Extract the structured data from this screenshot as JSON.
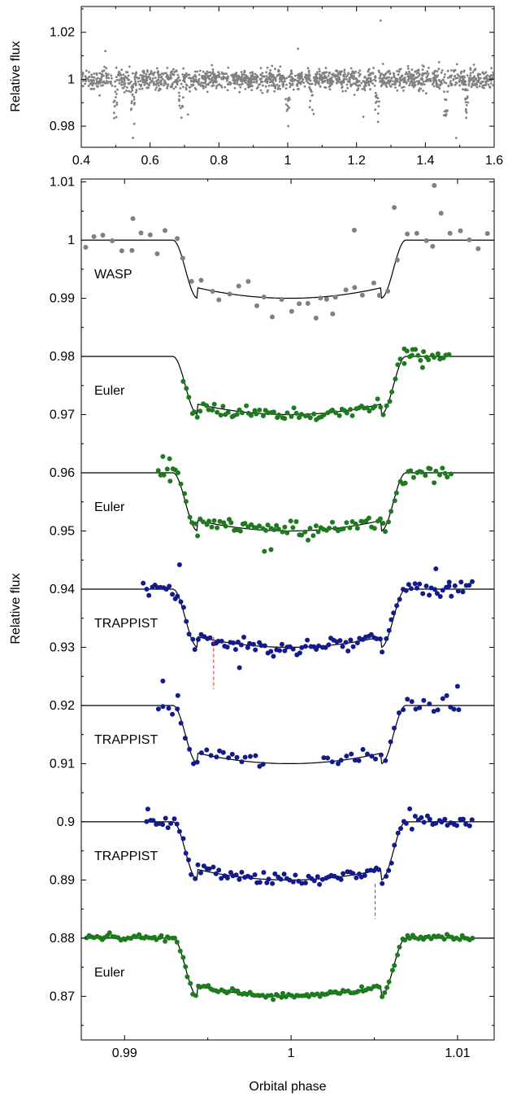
{
  "chart_data": [
    {
      "id": "top",
      "type": "scatter",
      "xlabel": "",
      "ylabel": "Relative flux",
      "xlim": [
        0.4,
        1.6
      ],
      "ylim": [
        0.971,
        1.031
      ],
      "xticks": [
        {
          "v": 0.4,
          "label": "0.4"
        },
        {
          "v": 0.6,
          "label": "0.6"
        },
        {
          "v": 0.8,
          "label": "0.8"
        },
        {
          "v": 1.0,
          "label": "1"
        },
        {
          "v": 1.2,
          "label": "1.2"
        },
        {
          "v": 1.4,
          "label": "1.4"
        },
        {
          "v": 1.6,
          "label": "1.6"
        }
      ],
      "yticks": [
        {
          "v": 0.98,
          "label": "0.98"
        },
        {
          "v": 1.0,
          "label": "1"
        },
        {
          "v": 1.02,
          "label": "1.02"
        }
      ],
      "series": [
        {
          "color": "#808080",
          "baseline": 1.0,
          "noise": 0.0022,
          "n_points": 1600,
          "transit_phases": [
            0.5,
            0.55,
            0.69,
            1.0,
            1.07,
            1.26,
            1.46,
            1.52
          ],
          "outliers": [
            [
              1.27,
              1.025
            ],
            [
              1.03,
              1.013
            ],
            [
              0.47,
              1.012
            ],
            [
              0.55,
              0.975
            ],
            [
              1.49,
              0.975
            ],
            [
              1.22,
              0.984
            ],
            [
              0.71,
              0.985
            ]
          ]
        }
      ]
    },
    {
      "id": "bottom",
      "type": "scatter",
      "xlabel": "Orbital phase",
      "ylabel": "Relative flux",
      "xlim": [
        0.9874,
        1.0122
      ],
      "ylim": [
        0.8625,
        1.0105
      ],
      "xticks": [
        {
          "v": 0.99,
          "label": "0.99"
        },
        {
          "v": 1.0,
          "label": "1"
        },
        {
          "v": 1.01,
          "label": "1.01"
        }
      ],
      "yticks": [
        {
          "v": 0.87,
          "label": "0.87"
        },
        {
          "v": 0.88,
          "label": "0.88"
        },
        {
          "v": 0.89,
          "label": "0.89"
        },
        {
          "v": 0.9,
          "label": "0.9"
        },
        {
          "v": 0.91,
          "label": "0.91"
        },
        {
          "v": 0.92,
          "label": "0.92"
        },
        {
          "v": 0.93,
          "label": "0.93"
        },
        {
          "v": 0.94,
          "label": "0.94"
        },
        {
          "v": 0.95,
          "label": "0.95"
        },
        {
          "v": 0.96,
          "label": "0.96"
        },
        {
          "v": 0.97,
          "label": "0.97"
        },
        {
          "v": 0.98,
          "label": "0.98"
        },
        {
          "v": 0.99,
          "label": "0.99"
        },
        {
          "v": 1.0,
          "label": "1"
        },
        {
          "v": 1.01,
          "label": "1.01"
        }
      ],
      "transit_model": {
        "t1": 0.9929,
        "t2": 0.9944,
        "t3": 1.0054,
        "t4": 1.0069,
        "depth": 0.01
      },
      "series": [
        {
          "name": "WASP",
          "baseline": 1.0,
          "color": "#808080",
          "x_start": 0.9876,
          "x_end": 1.0122,
          "n_points": 46,
          "noise": 0.0013,
          "seed": 11,
          "outliers": [
            [
              0.9905,
              1.0037
            ],
            [
              1.0038,
              1.0017
            ],
            [
              1.0062,
              1.0056
            ],
            [
              1.0086,
              1.0094
            ],
            [
              1.0025,
              0.9873
            ],
            [
              1.0015,
              0.9866
            ]
          ]
        },
        {
          "name": "Euler",
          "baseline": 0.98,
          "color": "#1e7a1e",
          "x_start": 0.9935,
          "x_end": 1.0096,
          "n_points": 95,
          "noise": 0.0005,
          "seed": 23,
          "outliers": [
            [
              1.0068,
              0.9813
            ],
            [
              1.0073,
              0.9812
            ],
            [
              1.0079,
              0.9781
            ]
          ]
        },
        {
          "name": "Euler",
          "baseline": 0.96,
          "color": "#1e7a1e",
          "x_start": 0.992,
          "x_end": 1.0097,
          "n_points": 105,
          "noise": 0.0007,
          "seed": 37,
          "outliers": [
            [
              0.9923,
              0.9628
            ],
            [
              0.9927,
              0.9624
            ],
            [
              0.9984,
              0.9465
            ],
            [
              0.9988,
              0.9468
            ]
          ]
        },
        {
          "name": "TRAPPIST",
          "baseline": 0.94,
          "color": "#131b8c",
          "x_start": 0.9911,
          "x_end": 1.011,
          "n_points": 115,
          "noise": 0.0006,
          "seed": 53,
          "outliers": [
            [
              0.9933,
              0.9442
            ],
            [
              0.9969,
              0.9265
            ],
            [
              1.0087,
              0.9435
            ],
            [
              1.0095,
              0.9412
            ]
          ],
          "marker": {
            "x": 0.99535,
            "y1": 0.9318,
            "y2": 0.9228
          }
        },
        {
          "name": "TRAPPIST",
          "baseline": 0.92,
          "color": "#131b8c",
          "x_start": 0.992,
          "x_end": 1.0103,
          "n_points": 70,
          "noise": 0.0008,
          "seed": 71,
          "gap": [
            0.9984,
            1.0019
          ],
          "outliers": [
            [
              0.9923,
              0.9242
            ],
            [
              0.9932,
              0.9217
            ],
            [
              1.01,
              0.9233
            ]
          ]
        },
        {
          "name": "TRAPPIST",
          "baseline": 0.9,
          "color": "#131b8c",
          "x_start": 0.9913,
          "x_end": 1.011,
          "n_points": 110,
          "noise": 0.0006,
          "seed": 89,
          "outliers": [
            [
              0.9914,
              0.9022
            ]
          ],
          "marker": {
            "x": 1.00505,
            "y1": 0.8893,
            "y2": 0.8833
          }
        },
        {
          "name": "Euler",
          "baseline": 0.88,
          "color": "#1e7a1e",
          "x_start": 0.9877,
          "x_end": 1.011,
          "n_points": 150,
          "noise": 0.0003,
          "seed": 97,
          "outliers": []
        }
      ]
    }
  ]
}
